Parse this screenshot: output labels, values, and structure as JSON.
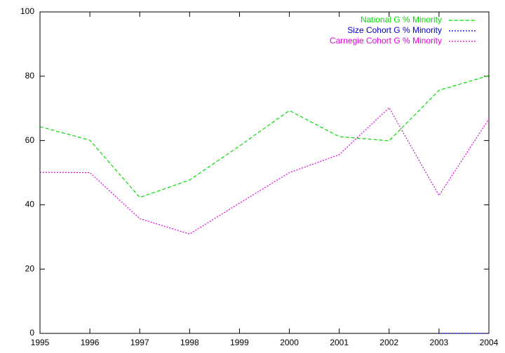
{
  "chart_data": {
    "type": "line",
    "x": [
      1995,
      1996,
      1997,
      1998,
      1999,
      2000,
      2001,
      2002,
      2003,
      2004
    ],
    "series": [
      {
        "name": "National G % Minority",
        "color": "#00dd00",
        "style": "dashed",
        "values": [
          64.3,
          60.1,
          42.3,
          47.7,
          58.3,
          69.3,
          61.2,
          59.9,
          75.6,
          80.2
        ]
      },
      {
        "name": "Size Cohort G % Minority",
        "color": "#0000cc",
        "style": "dotted",
        "values": [
          null,
          null,
          null,
          null,
          null,
          null,
          null,
          null,
          0,
          0
        ]
      },
      {
        "name": "Carnegie Cohort G % Minority",
        "color": "#e000e0",
        "style": "dotted",
        "values": [
          50.1,
          50,
          35.7,
          30.9,
          40.5,
          50,
          55.6,
          70.2,
          42.9,
          66.7
        ]
      }
    ],
    "xlim": [
      1995,
      2004
    ],
    "xticks": [
      1995,
      1996,
      1997,
      1998,
      1999,
      2000,
      2001,
      2002,
      2003,
      2004
    ],
    "ylim": [
      0,
      100
    ],
    "yticks": [
      0,
      20,
      40,
      60,
      80,
      100
    ],
    "legend": "top-right"
  }
}
